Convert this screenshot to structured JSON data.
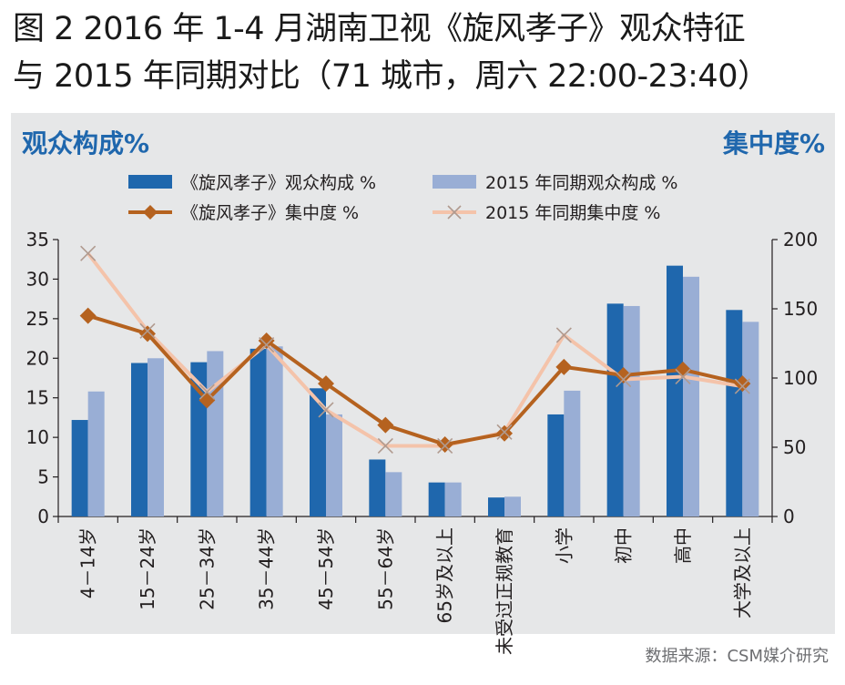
{
  "title_line1": "图 2 2016 年 1-4 月湖南卫视《旋风孝子》观众特征",
  "title_line2": "与 2015 年同期对比（71 城市，周六 22:00-23:40）",
  "left_axis_title": "观众构成%",
  "right_axis_title": "集中度%",
  "source": "数据来源：CSM媒介研究",
  "colors": {
    "bar_2016": "#1f67ad",
    "bar_2015": "#99aed5",
    "line_2016": "#b5621f",
    "line_2015": "#f4c3aa",
    "panel_bg": "#e6e7e8",
    "axis_title": "#1f67ad"
  },
  "chart_data": {
    "type": "bar",
    "categories": [
      "4－14岁",
      "15－24岁",
      "25－34岁",
      "35－44岁",
      "45－54岁",
      "55－64岁",
      "65岁及以上",
      "未受过正规教育",
      "小学",
      "初中",
      "高中",
      "大学及以上"
    ],
    "left_axis": {
      "ylim": [
        0,
        35
      ],
      "ticks": [
        0,
        5,
        10,
        15,
        20,
        25,
        30,
        35
      ]
    },
    "right_axis": {
      "ylim": [
        0,
        200
      ],
      "ticks": [
        0,
        50,
        100,
        150,
        200
      ]
    },
    "series": [
      {
        "name": "《旋风孝子》观众构成 %",
        "kind": "bar",
        "axis": "left",
        "values": [
          12.2,
          19.4,
          19.5,
          21.2,
          16.2,
          7.2,
          4.3,
          2.4,
          12.9,
          26.9,
          31.7,
          26.1
        ]
      },
      {
        "name": "2015 年同期观众构成 %",
        "kind": "bar",
        "axis": "left",
        "values": [
          15.8,
          20.0,
          20.9,
          21.5,
          12.9,
          5.6,
          4.3,
          2.5,
          15.9,
          26.6,
          30.3,
          24.6
        ]
      },
      {
        "name": "《旋风孝子》集中度 %",
        "kind": "line",
        "marker": "diamond",
        "axis": "right",
        "values": [
          145,
          132,
          84,
          127,
          96,
          66,
          52,
          60,
          108,
          102,
          106,
          96
        ]
      },
      {
        "name": "2015 年同期集中度 %",
        "kind": "line",
        "marker": "x",
        "axis": "right",
        "values": [
          190,
          134,
          90,
          124,
          77,
          51,
          51,
          61,
          131,
          99,
          101,
          94
        ]
      }
    ],
    "legend_position": "top-center"
  }
}
